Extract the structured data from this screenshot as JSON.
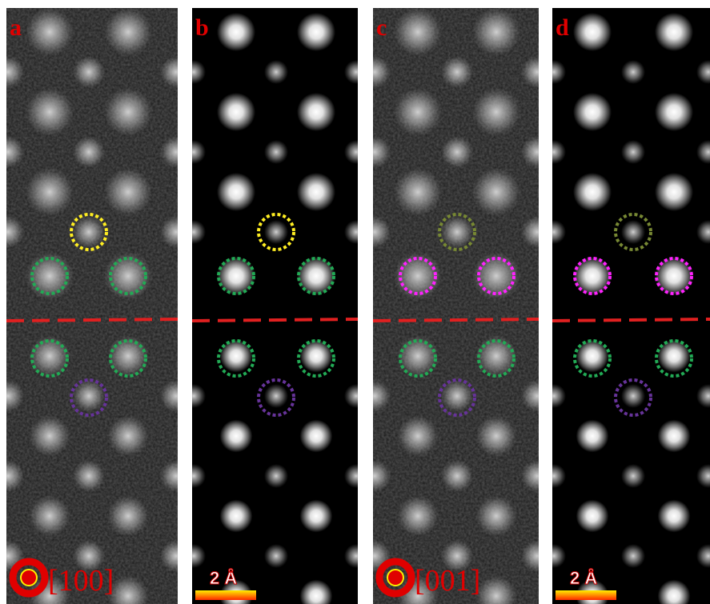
{
  "panels": [
    {
      "label": "a",
      "annotation": "[100]"
    },
    {
      "label": "b",
      "annotation": "2 Å"
    },
    {
      "label": "c",
      "annotation": "[001]"
    },
    {
      "label": "d",
      "annotation": "2 Å"
    }
  ]
}
